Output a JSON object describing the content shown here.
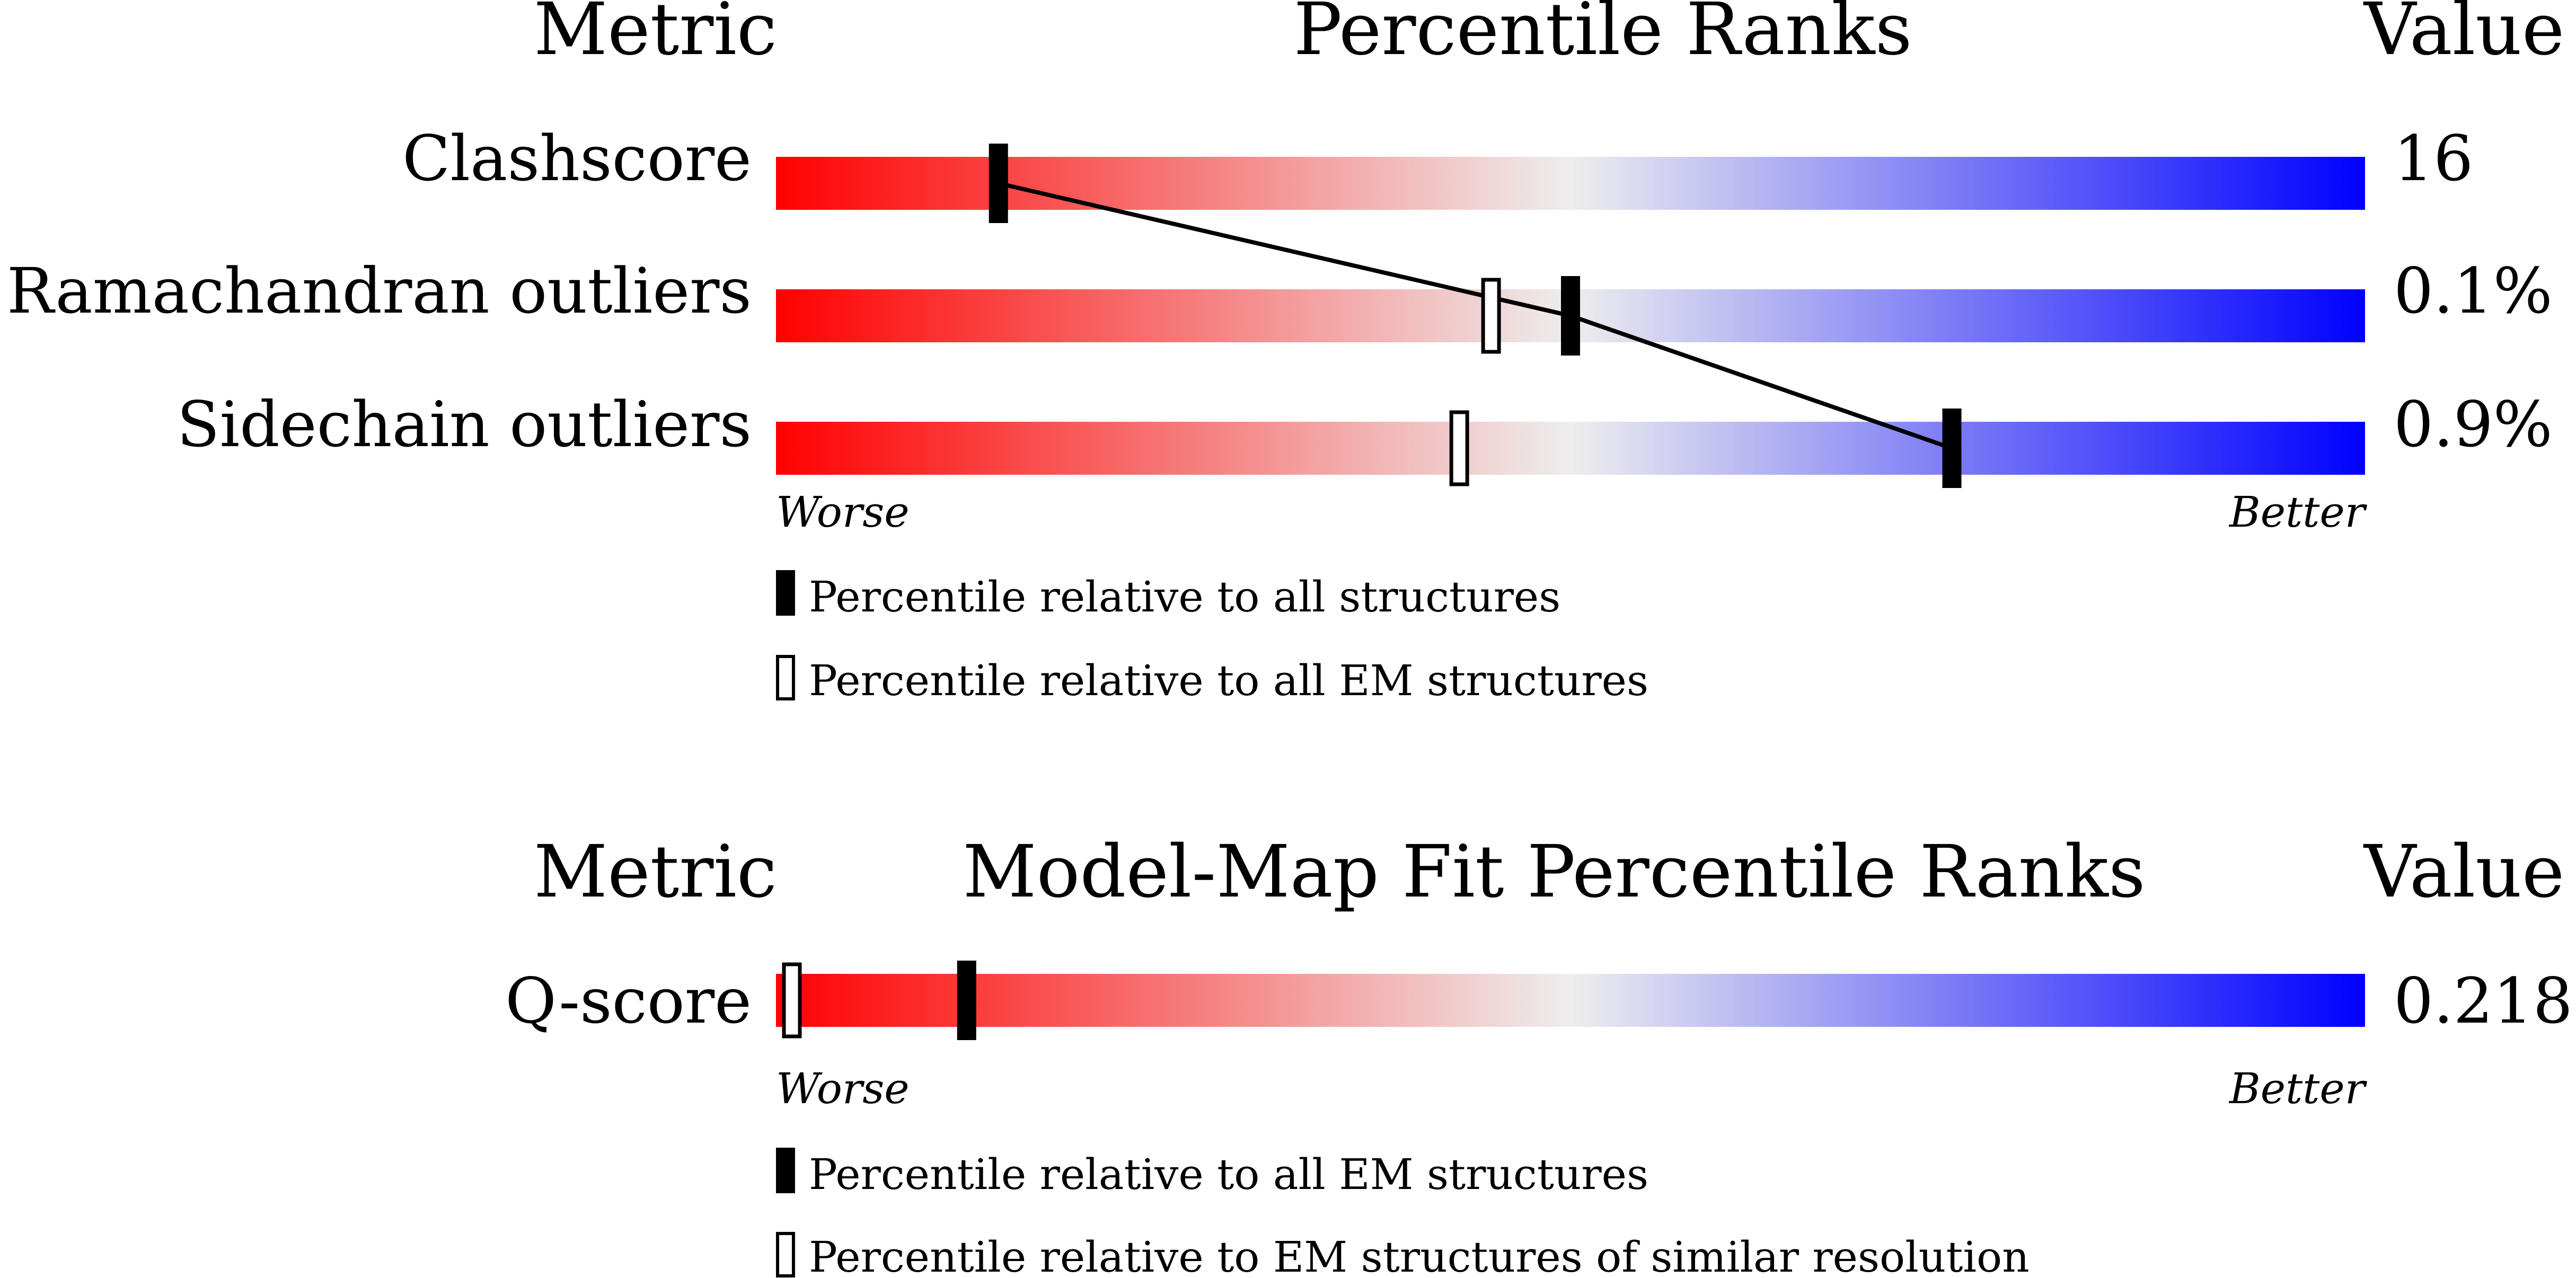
{
  "colors": {
    "worse": "#ff0000",
    "neutral": "#eeeeee",
    "better": "#0000ff",
    "marker": "#000000"
  },
  "panels": [
    {
      "header": {
        "metric": "Metric",
        "title": "Percentile Ranks",
        "value": "Value"
      },
      "rows": [
        {
          "label": "Clashscore",
          "value": "16"
        },
        {
          "label": "Ramachandran outliers",
          "value": "0.1%"
        },
        {
          "label": "Sidechain outliers",
          "value": "0.9%"
        }
      ],
      "scale": {
        "worse": "Worse",
        "better": "Better"
      },
      "legend": [
        {
          "marker": "filled",
          "text": "Percentile relative to all structures"
        },
        {
          "marker": "open",
          "text": "Percentile relative to all EM structures"
        }
      ]
    },
    {
      "header": {
        "metric": "Metric",
        "title": "Model-Map Fit Percentile Ranks",
        "value": "Value"
      },
      "rows": [
        {
          "label": "Q-score",
          "value": "0.218"
        }
      ],
      "scale": {
        "worse": "Worse",
        "better": "Better"
      },
      "legend": [
        {
          "marker": "filled",
          "text": "Percentile relative to all EM structures"
        },
        {
          "marker": "open",
          "text": "Percentile relative to EM structures of similar resolution"
        }
      ]
    }
  ],
  "chart_data": [
    {
      "type": "percentile-slider",
      "title": "Percentile Ranks",
      "range": [
        0,
        100
      ],
      "connect_filled_markers": true,
      "series": [
        {
          "name": "Percentile relative to all structures",
          "marker": "filled",
          "values": [
            14,
            50,
            74
          ]
        },
        {
          "name": "Percentile relative to all EM structures",
          "marker": "open",
          "values": [
            null,
            45,
            43
          ]
        }
      ],
      "categories": [
        "Clashscore",
        "Ramachandran outliers",
        "Sidechain outliers"
      ],
      "values": [
        "16",
        "0.1%",
        "0.9%"
      ]
    },
    {
      "type": "percentile-slider",
      "title": "Model-Map Fit Percentile Ranks",
      "range": [
        0,
        100
      ],
      "connect_filled_markers": false,
      "series": [
        {
          "name": "Percentile relative to all EM structures",
          "marker": "filled",
          "values": [
            12
          ]
        },
        {
          "name": "Percentile relative to EM structures of similar resolution",
          "marker": "open",
          "values": [
            1
          ]
        }
      ],
      "categories": [
        "Q-score"
      ],
      "values": [
        "0.218"
      ]
    }
  ]
}
